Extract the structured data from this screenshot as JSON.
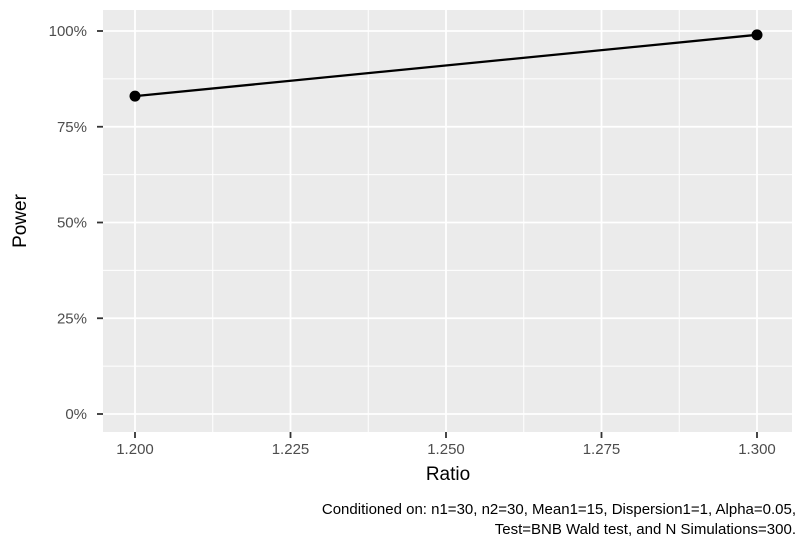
{
  "chart_data": {
    "type": "line",
    "title": "",
    "xlabel": "Ratio",
    "ylabel": "Power",
    "x_domain": [
      1.2,
      1.3
    ],
    "y_domain": [
      0,
      100
    ],
    "x_ticks": {
      "values": [
        1.2,
        1.225,
        1.25,
        1.275,
        1.3
      ],
      "labels": [
        "1.200",
        "1.225",
        "1.250",
        "1.275",
        "1.300"
      ]
    },
    "y_ticks": {
      "values": [
        0,
        25,
        50,
        75,
        100
      ],
      "labels": [
        "0%",
        "25%",
        "50%",
        "75%",
        "100%"
      ]
    },
    "grid": {
      "major": true,
      "minor": true
    },
    "legend": "none",
    "series": [
      {
        "name": "power-curve",
        "points": [
          {
            "x": 1.2,
            "y": 83
          },
          {
            "x": 1.3,
            "y": 99
          }
        ]
      }
    ],
    "caption_lines": [
      "Conditioned on: n1=30, n2=30, Mean1=15, Dispersion1=1, Alpha=0.05,",
      "Test=BNB Wald test, and N Simulations=300."
    ],
    "colors": {
      "background": "#FFFFFF",
      "panel_bg": "#EBEBEB",
      "grid": "#FFFFFF",
      "line": "#000000",
      "point": "#000000",
      "axis_text": "#4D4D4D",
      "tick": "#333333",
      "title_text": "#000000"
    }
  }
}
